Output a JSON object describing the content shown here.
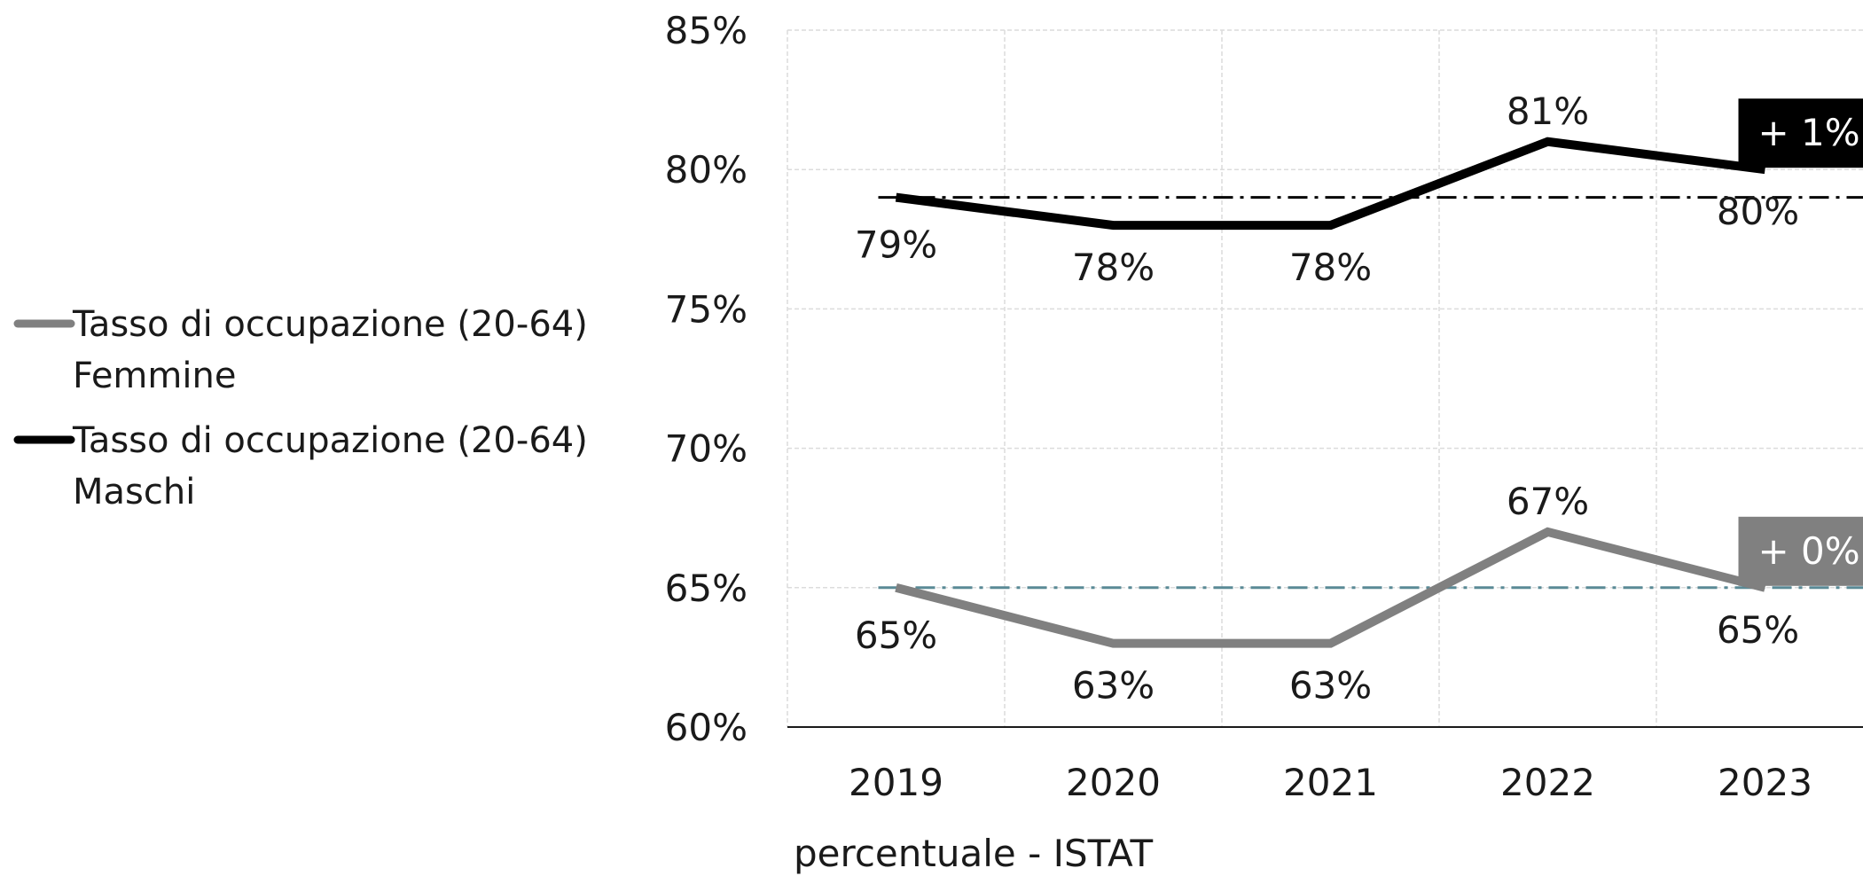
{
  "chart_data": {
    "type": "line",
    "categories": [
      "2019",
      "2020",
      "2021",
      "2022",
      "2023"
    ],
    "ylim": [
      60,
      85
    ],
    "yticks": [
      "60%",
      "65%",
      "70%",
      "75%",
      "80%",
      "85%"
    ],
    "grid": true,
    "legend_position": "left",
    "xlabel": "percentuale - ISTAT",
    "series": [
      {
        "name": "Tasso di occupazione (20-64) Femmine",
        "legend_lines": [
          "Tasso di occupazione (20-64)",
          "Femmine"
        ],
        "color": "#808080",
        "values": [
          65,
          63,
          63,
          67,
          65
        ],
        "labels": [
          "65%",
          "63%",
          "63%",
          "67%",
          "65%"
        ],
        "baseline": 65,
        "baseline_color": "#5a8a96",
        "change": "+ 0%"
      },
      {
        "name": "Tasso di occupazione (20-64) Maschi",
        "legend_lines": [
          "Tasso di occupazione (20-64)",
          "Maschi"
        ],
        "color": "#000000",
        "values": [
          79,
          78,
          78,
          81,
          80
        ],
        "labels": [
          "79%",
          "78%",
          "78%",
          "81%",
          "80%"
        ],
        "baseline": 79,
        "baseline_color": "#000000",
        "change": "+ 1%"
      }
    ]
  }
}
